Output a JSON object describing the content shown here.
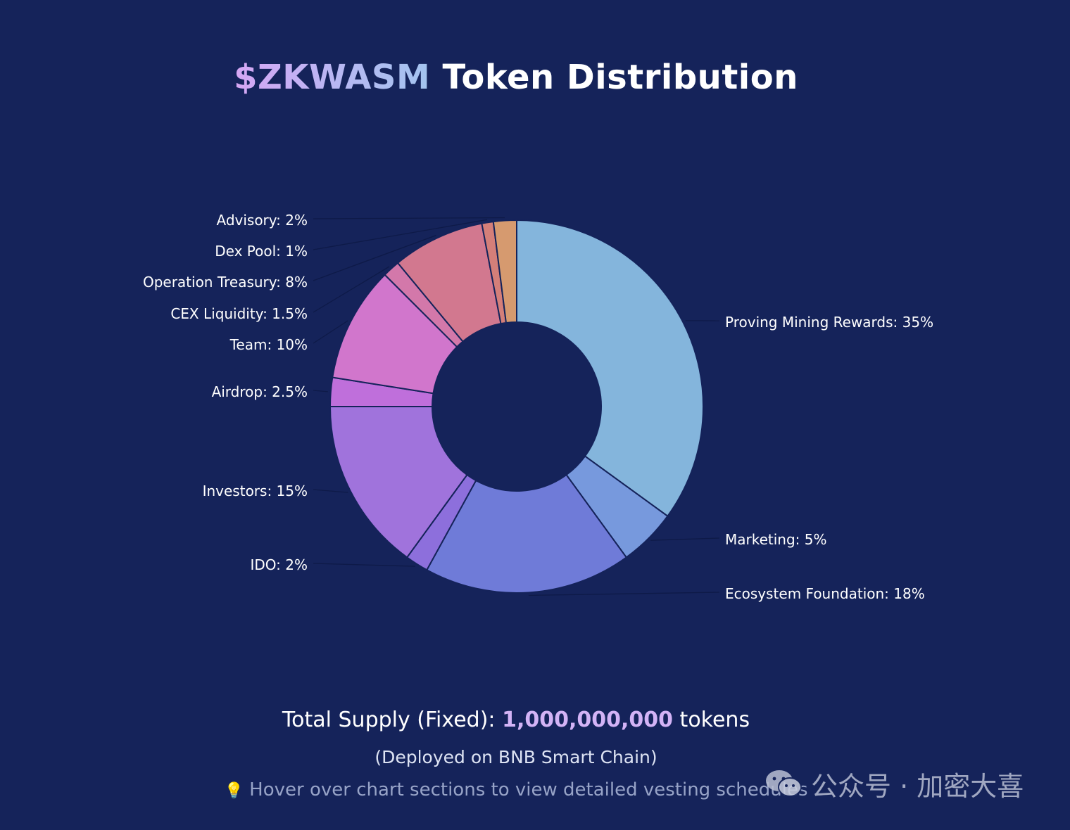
{
  "title": {
    "ticker": "$ZKWASM",
    "rest": "Token Distribution"
  },
  "chart_data": {
    "type": "pie",
    "title": "$ZKWASM Token Distribution",
    "donut": true,
    "slices": [
      {
        "label": "Proving Mining Rewards",
        "value": 35,
        "display": "Proving Mining Rewards: 35%",
        "color": "#84b5dc"
      },
      {
        "label": "Marketing",
        "value": 5,
        "display": "Marketing: 5%",
        "color": "#7799dd"
      },
      {
        "label": "Ecosystem Foundation",
        "value": 18,
        "display": "Ecosystem Foundation: 18%",
        "color": "#6f7bd8"
      },
      {
        "label": "IDO",
        "value": 2,
        "display": "IDO: 2%",
        "color": "#8d6fdc"
      },
      {
        "label": "Investors",
        "value": 15,
        "display": "Investors: 15%",
        "color": "#a073dc"
      },
      {
        "label": "Airdrop",
        "value": 2.5,
        "display": "Airdrop: 2.5%",
        "color": "#bf6fdb"
      },
      {
        "label": "Team",
        "value": 10,
        "display": "Team: 10%",
        "color": "#d176cc"
      },
      {
        "label": "CEX Liquidity",
        "value": 1.5,
        "display": "CEX Liquidity: 1.5%",
        "color": "#d378aa"
      },
      {
        "label": "Operation Treasury",
        "value": 8,
        "display": "Operation Treasury: 8%",
        "color": "#d2788f"
      },
      {
        "label": "Dex Pool",
        "value": 1,
        "display": "Dex Pool: 1%",
        "color": "#d47f79"
      },
      {
        "label": "Advisory",
        "value": 2,
        "display": "Advisory: 2%",
        "color": "#d69a6f"
      }
    ],
    "legend": "none"
  },
  "supply": {
    "prefix": "Total Supply (Fixed): ",
    "amount": "1,000,000,000",
    "suffix": " tokens"
  },
  "deployed": "(Deployed on BNB Smart Chain)",
  "hint": {
    "icon": "lightbulb-icon",
    "text": "Hover over chart sections to view detailed vesting schedules"
  },
  "watermark": {
    "icon": "wechat-icon",
    "text": "公众号 · 加密大喜"
  }
}
